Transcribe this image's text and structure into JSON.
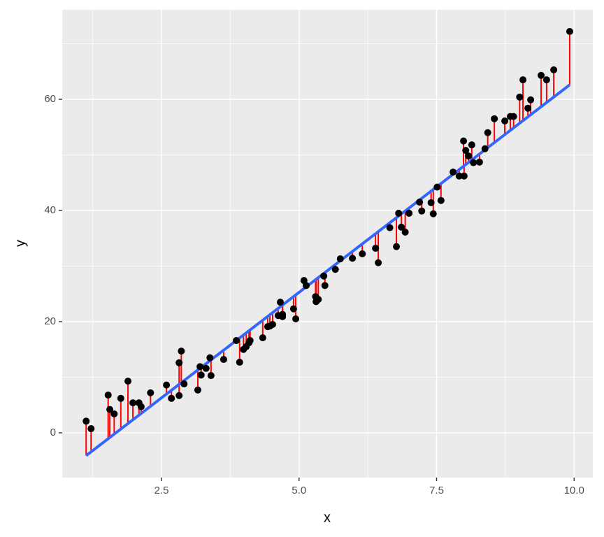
{
  "chart_data": {
    "type": "scatter",
    "x_label": "x",
    "y_label": "y",
    "x": [
      1.13,
      1.22,
      1.53,
      1.56,
      1.64,
      1.76,
      1.89,
      1.98,
      2.09,
      2.13,
      2.3,
      2.59,
      2.68,
      2.82,
      2.82,
      2.86,
      2.91,
      3.16,
      3.2,
      3.22,
      3.31,
      3.38,
      3.4,
      3.63,
      3.86,
      3.92,
      3.99,
      4.04,
      4.09,
      4.11,
      4.34,
      4.43,
      4.47,
      4.52,
      4.62,
      4.66,
      4.7,
      4.7,
      4.9,
      4.94,
      5.09,
      5.13,
      5.3,
      5.31,
      5.35,
      5.45,
      5.47,
      5.66,
      5.75,
      5.97,
      6.15,
      6.39,
      6.44,
      6.65,
      6.77,
      6.81,
      6.86,
      6.93,
      7.0,
      7.19,
      7.23,
      7.4,
      7.44,
      7.51,
      7.58,
      7.8,
      7.91,
      7.99,
      8.0,
      8.03,
      8.08,
      8.14,
      8.17,
      8.28,
      8.38,
      8.43,
      8.55,
      8.74,
      8.84,
      8.9,
      9.01,
      9.07,
      9.16,
      9.21,
      9.4,
      9.5,
      9.63,
      9.92
    ],
    "y": [
      2.1,
      0.75,
      6.8,
      4.2,
      3.4,
      6.2,
      9.3,
      5.4,
      5.4,
      4.7,
      7.2,
      8.6,
      6.2,
      6.7,
      12.6,
      14.7,
      8.8,
      7.7,
      11.9,
      10.4,
      11.6,
      13.5,
      10.3,
      13.2,
      16.6,
      12.7,
      15.0,
      15.5,
      16.2,
      16.6,
      17.1,
      19.1,
      19.2,
      19.5,
      21.1,
      23.5,
      20.9,
      21.3,
      22.3,
      20.5,
      27.4,
      26.5,
      24.5,
      23.6,
      24.0,
      28.2,
      26.5,
      29.4,
      31.3,
      31.4,
      32.2,
      33.2,
      30.6,
      36.9,
      33.5,
      39.5,
      37.0,
      36.1,
      39.5,
      41.5,
      39.9,
      41.4,
      39.4,
      44.2,
      41.8,
      46.9,
      46.2,
      52.5,
      46.2,
      50.8,
      49.8,
      51.8,
      48.6,
      48.7,
      51.1,
      54.0,
      56.5,
      56.1,
      56.9,
      56.9,
      60.4,
      63.5,
      58.4,
      59.9,
      64.3,
      63.5,
      65.3,
      72.2
    ],
    "point_color": "#000000",
    "residual_color": "#ff0000",
    "fit": {
      "x": [
        1.13,
        9.92
      ],
      "y": [
        -4.1,
        62.6
      ],
      "color": "#3366ff"
    },
    "xlim": [
      0.695,
      10.34
    ],
    "ylim": [
      -8.05,
      76.1
    ],
    "xticks": [
      2.5,
      {
        "value": 5,
        "label": "5.0"
      },
      7.5,
      {
        "value": 10,
        "label": "10.0"
      }
    ],
    "yticks": [
      0,
      20,
      40,
      60
    ],
    "x_minor_breaks": [
      1.25,
      3.75,
      6.25,
      8.75
    ],
    "y_minor_breaks": [
      10,
      30,
      50,
      70
    ],
    "grid": true
  }
}
